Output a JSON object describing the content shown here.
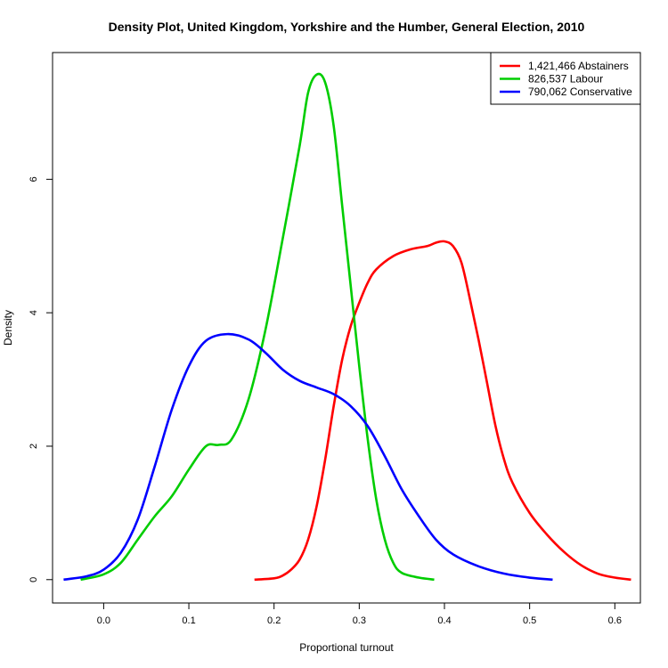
{
  "chart_data": {
    "type": "line",
    "title": "Density Plot, United Kingdom, Yorkshire and the Humber, General Election, 2010",
    "xlabel": "Proportional turnout",
    "ylabel": "Density",
    "xlim": [
      -0.06,
      0.63
    ],
    "ylim": [
      -0.35,
      7.9
    ],
    "x_ticks": [
      0.0,
      0.1,
      0.2,
      0.3,
      0.4,
      0.5,
      0.6
    ],
    "x_tick_labels": [
      "0.0",
      "0.1",
      "0.2",
      "0.3",
      "0.4",
      "0.5",
      "0.6"
    ],
    "y_ticks": [
      0,
      2,
      4,
      6
    ],
    "y_tick_labels": [
      "0",
      "2",
      "4",
      "6"
    ],
    "grid": false,
    "legend_position": "top-right",
    "series": [
      {
        "name": "1,421,466 Abstainers",
        "color": "#ff0000",
        "points": [
          [
            0.177,
            0.0
          ],
          [
            0.2,
            0.02
          ],
          [
            0.21,
            0.06
          ],
          [
            0.22,
            0.15
          ],
          [
            0.23,
            0.3
          ],
          [
            0.24,
            0.6
          ],
          [
            0.25,
            1.1
          ],
          [
            0.26,
            1.8
          ],
          [
            0.27,
            2.6
          ],
          [
            0.28,
            3.3
          ],
          [
            0.29,
            3.8
          ],
          [
            0.3,
            4.15
          ],
          [
            0.31,
            4.45
          ],
          [
            0.32,
            4.65
          ],
          [
            0.34,
            4.85
          ],
          [
            0.36,
            4.95
          ],
          [
            0.38,
            5.0
          ],
          [
            0.39,
            5.05
          ],
          [
            0.4,
            5.07
          ],
          [
            0.41,
            5.0
          ],
          [
            0.42,
            4.75
          ],
          [
            0.43,
            4.2
          ],
          [
            0.44,
            3.6
          ],
          [
            0.45,
            2.95
          ],
          [
            0.46,
            2.3
          ],
          [
            0.47,
            1.8
          ],
          [
            0.48,
            1.45
          ],
          [
            0.5,
            1.0
          ],
          [
            0.52,
            0.68
          ],
          [
            0.54,
            0.42
          ],
          [
            0.56,
            0.22
          ],
          [
            0.58,
            0.09
          ],
          [
            0.6,
            0.03
          ],
          [
            0.619,
            0.0
          ]
        ]
      },
      {
        "name": "826,537 Labour",
        "color": "#00cd00",
        "points": [
          [
            -0.027,
            0.0
          ],
          [
            0.0,
            0.08
          ],
          [
            0.02,
            0.25
          ],
          [
            0.04,
            0.6
          ],
          [
            0.06,
            0.95
          ],
          [
            0.08,
            1.25
          ],
          [
            0.1,
            1.65
          ],
          [
            0.12,
            2.0
          ],
          [
            0.135,
            2.02
          ],
          [
            0.15,
            2.1
          ],
          [
            0.17,
            2.7
          ],
          [
            0.19,
            3.75
          ],
          [
            0.21,
            5.1
          ],
          [
            0.23,
            6.5
          ],
          [
            0.24,
            7.3
          ],
          [
            0.25,
            7.57
          ],
          [
            0.26,
            7.45
          ],
          [
            0.27,
            6.8
          ],
          [
            0.28,
            5.6
          ],
          [
            0.29,
            4.4
          ],
          [
            0.3,
            3.2
          ],
          [
            0.31,
            2.1
          ],
          [
            0.32,
            1.2
          ],
          [
            0.33,
            0.6
          ],
          [
            0.34,
            0.25
          ],
          [
            0.35,
            0.1
          ],
          [
            0.37,
            0.03
          ],
          [
            0.388,
            0.0
          ]
        ]
      },
      {
        "name": "790,062 Conservative",
        "color": "#0000ff",
        "points": [
          [
            -0.047,
            0.0
          ],
          [
            -0.02,
            0.05
          ],
          [
            0.0,
            0.15
          ],
          [
            0.02,
            0.4
          ],
          [
            0.04,
            0.9
          ],
          [
            0.06,
            1.7
          ],
          [
            0.08,
            2.55
          ],
          [
            0.1,
            3.2
          ],
          [
            0.12,
            3.58
          ],
          [
            0.145,
            3.68
          ],
          [
            0.17,
            3.6
          ],
          [
            0.19,
            3.4
          ],
          [
            0.21,
            3.15
          ],
          [
            0.23,
            2.98
          ],
          [
            0.25,
            2.88
          ],
          [
            0.27,
            2.78
          ],
          [
            0.29,
            2.6
          ],
          [
            0.31,
            2.3
          ],
          [
            0.33,
            1.85
          ],
          [
            0.35,
            1.35
          ],
          [
            0.37,
            0.95
          ],
          [
            0.39,
            0.6
          ],
          [
            0.41,
            0.38
          ],
          [
            0.44,
            0.2
          ],
          [
            0.47,
            0.09
          ],
          [
            0.5,
            0.03
          ],
          [
            0.527,
            0.0
          ]
        ]
      }
    ]
  }
}
